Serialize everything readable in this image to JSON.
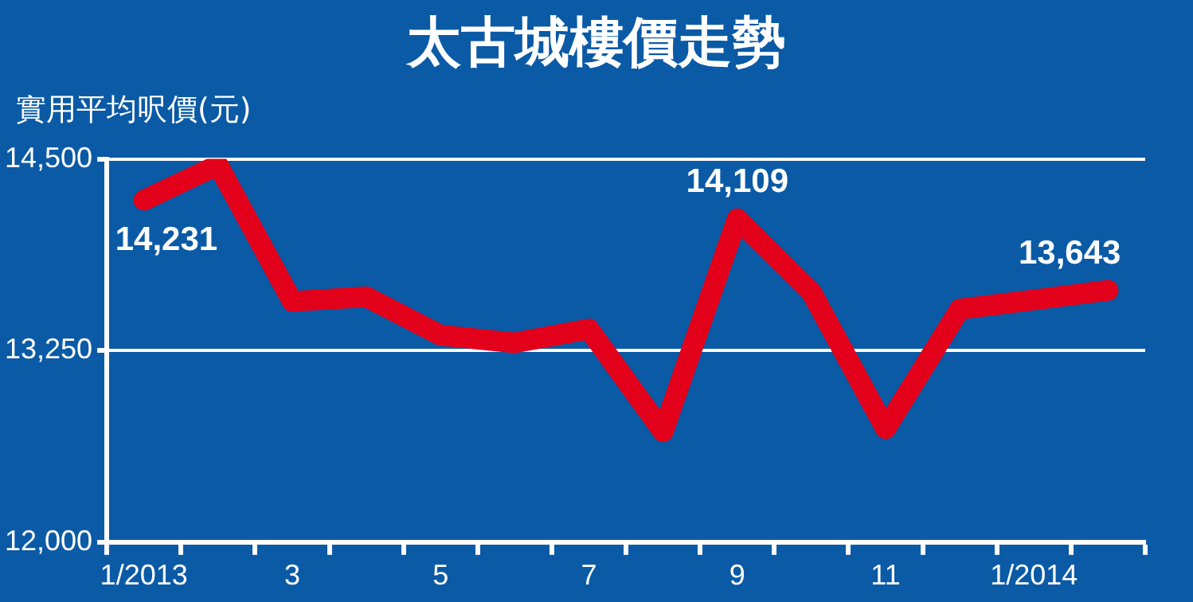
{
  "chart_data": {
    "type": "line",
    "title": "太古城樓價走勢",
    "ylabel": "實用平均呎價(元)",
    "categories": [
      "1/2013",
      null,
      "3",
      null,
      "5",
      null,
      "7",
      null,
      "9",
      null,
      "11",
      null,
      "1/2014",
      null
    ],
    "series": [
      {
        "color": "#e2001a",
        "values": [
          14231,
          14460,
          13570,
          13600,
          13350,
          13300,
          13390,
          12720,
          14109,
          13630,
          12740,
          13520,
          13580,
          13643
        ],
        "value_labels": [
          "14,231",
          null,
          null,
          null,
          null,
          null,
          null,
          null,
          "14,109",
          null,
          null,
          null,
          null,
          "13,643"
        ]
      }
    ],
    "ylim": [
      12000,
      14500
    ],
    "yticks": [
      {
        "value": 12000,
        "label": "12,000"
      },
      {
        "value": 13250,
        "label": "13,250"
      },
      {
        "value": 14500,
        "label": "14,500"
      }
    ],
    "grid": "y",
    "marker": "none",
    "line_style": "solid"
  }
}
